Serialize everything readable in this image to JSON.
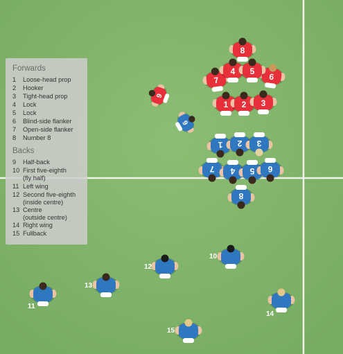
{
  "legend": {
    "forwards_heading": "Forwards",
    "forwards": [
      {
        "num": "1",
        "label": "Loose-head prop"
      },
      {
        "num": "2",
        "label": "Hooker"
      },
      {
        "num": "3",
        "label": "Tight-head prop"
      },
      {
        "num": "4",
        "label": "Lock"
      },
      {
        "num": "5",
        "label": "Lock"
      },
      {
        "num": "6",
        "label": "Blind-side flanker"
      },
      {
        "num": "7",
        "label": "Open-side flanker"
      },
      {
        "num": "8",
        "label": "Number 8"
      }
    ],
    "backs_heading": "Backs",
    "backs": [
      {
        "num": "9",
        "label": "Half-back"
      },
      {
        "num": "10",
        "label": "First five-eighth",
        "label2": "(fly half)"
      },
      {
        "num": "11",
        "label": "Left wing"
      },
      {
        "num": "12",
        "label": "Second five-eighth",
        "label2": "(inside centre)"
      },
      {
        "num": "13",
        "label": "Centre",
        "label2": "(outside centre)"
      },
      {
        "num": "14",
        "label": "Right wing"
      },
      {
        "num": "15",
        "label": "Fullback"
      }
    ]
  },
  "red_team": {
    "color": "#e8303a",
    "jersey_numbers": [
      "8",
      "7",
      "6",
      "6",
      "9",
      "5",
      "4",
      "1",
      "2",
      "3",
      "9"
    ]
  },
  "blue_team": {
    "color": "#2f78c0",
    "jersey_numbers": [
      "9",
      "1",
      "2",
      "3",
      "7",
      "4",
      "5",
      "6",
      "8"
    ],
    "back_labels": [
      "10",
      "11",
      "12",
      "13",
      "14",
      "15"
    ]
  },
  "colors": {
    "pitch": "#80b46a",
    "line": "#f2f4ee"
  }
}
